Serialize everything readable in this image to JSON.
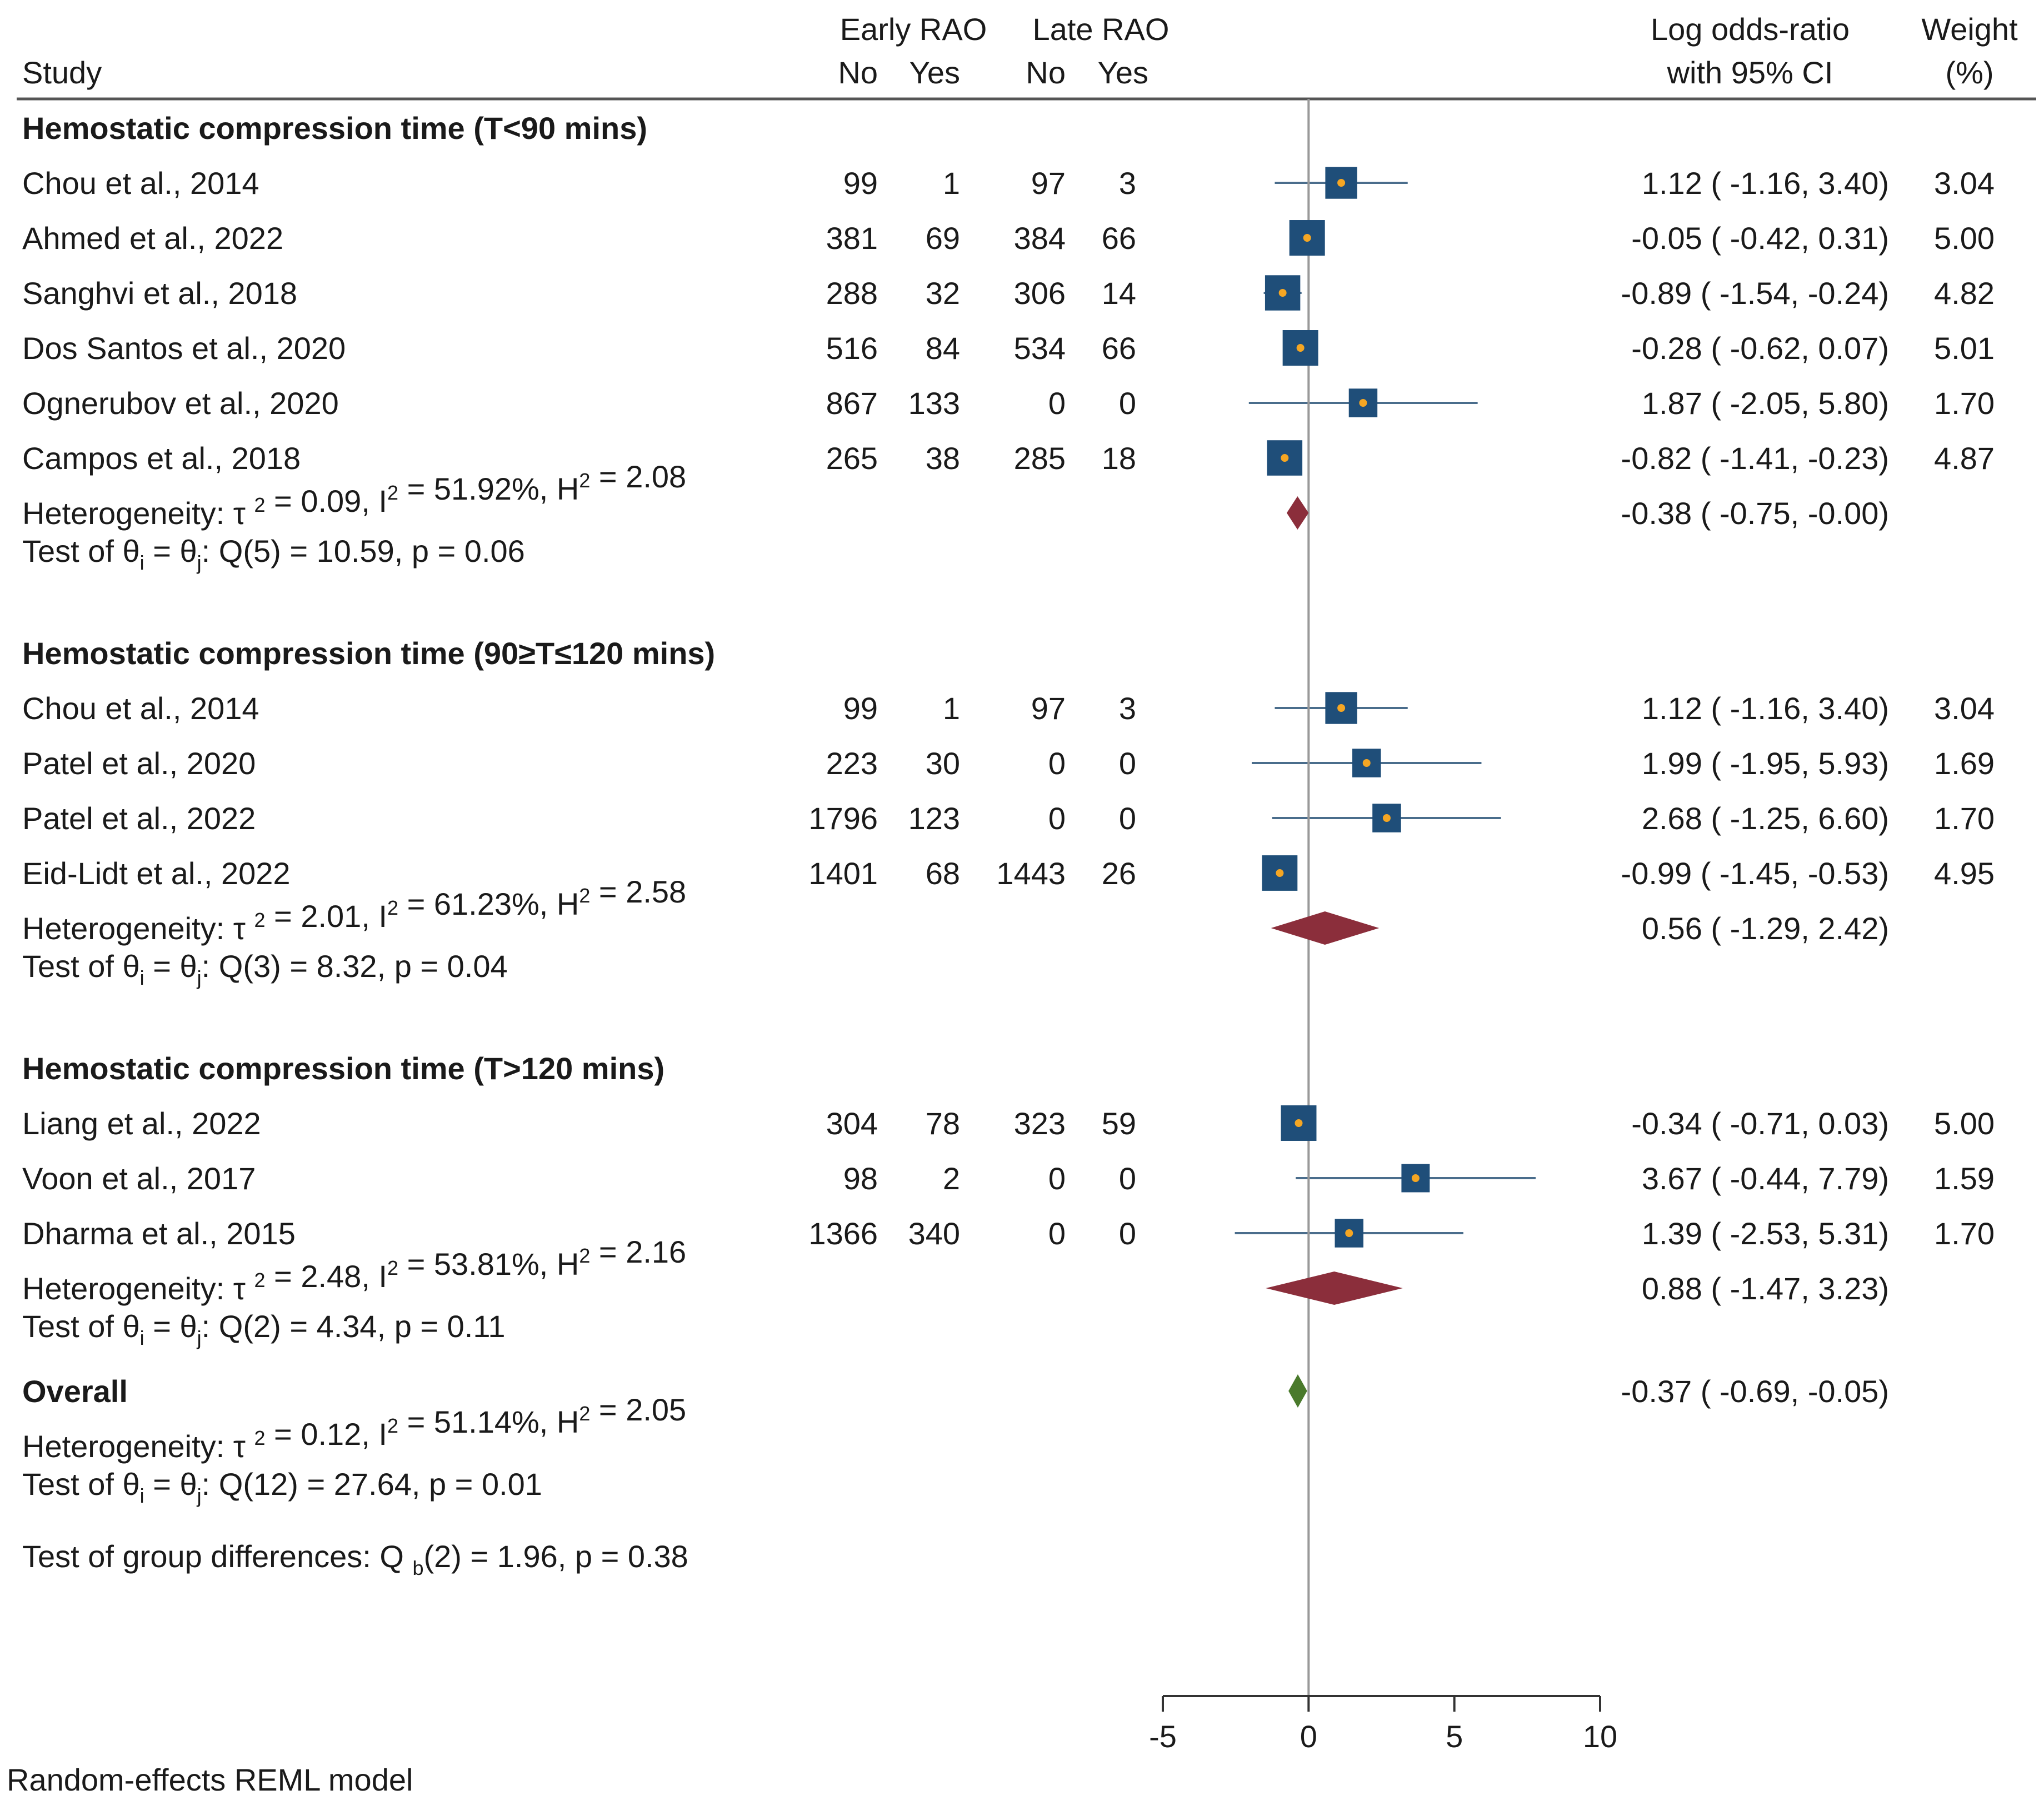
{
  "chart_data": {
    "type": "forest",
    "headers": {
      "study": "Study",
      "early_group": "Early RAO",
      "late_group": "Late RAO",
      "no": "No",
      "yes": "Yes",
      "effect_line1": "Log odds-ratio",
      "effect_line2": "with 95% CI",
      "weight_line1": "Weight",
      "weight_line2": "(%)"
    },
    "axis": {
      "min": -5,
      "max": 10,
      "ticks": [
        -5,
        0,
        5,
        10
      ],
      "tick_labels": [
        "-5",
        "0",
        "5",
        "10"
      ],
      "reference": 0
    },
    "colors": {
      "study_box": "#1f4e79",
      "study_dot": "#f5a623",
      "subgroup_diamond": "#8b2e3b",
      "overall_diamond": "#4a7a2c",
      "ci_line": "#4a6d8c",
      "ref_line": "#999999",
      "text": "#1a1a1a"
    },
    "groups": [
      {
        "title": "Hemostatic compression time (T<90 mins)",
        "studies": [
          {
            "name": "Chou et al., 2014",
            "early_no": "99",
            "early_yes": "1",
            "late_no": "97",
            "late_yes": "3",
            "est": 1.12,
            "lo": -1.16,
            "hi": 3.4,
            "ci_text": "1.12 (  -1.16,    3.40)",
            "weight": "3.04"
          },
          {
            "name": "Ahmed et al., 2022",
            "early_no": "381",
            "early_yes": "69",
            "late_no": "384",
            "late_yes": "66",
            "est": -0.05,
            "lo": -0.42,
            "hi": 0.31,
            "ci_text": "-0.05 (  -0.42,    0.31)",
            "weight": "5.00"
          },
          {
            "name": "Sanghvi et al., 2018",
            "early_no": "288",
            "early_yes": "32",
            "late_no": "306",
            "late_yes": "14",
            "est": -0.89,
            "lo": -1.54,
            "hi": -0.24,
            "ci_text": "-0.89 (  -1.54,  -0.24)",
            "weight": "4.82"
          },
          {
            "name": "Dos Santos et al., 2020",
            "early_no": "516",
            "early_yes": "84",
            "late_no": "534",
            "late_yes": "66",
            "est": -0.28,
            "lo": -0.62,
            "hi": 0.07,
            "ci_text": "-0.28 (  -0.62,    0.07)",
            "weight": "5.01"
          },
          {
            "name": "Ognerubov et al., 2020",
            "early_no": "867",
            "early_yes": "133",
            "late_no": "0",
            "late_yes": "0",
            "est": 1.87,
            "lo": -2.05,
            "hi": 5.8,
            "ci_text": "1.87 (  -2.05,    5.80)",
            "weight": "1.70"
          },
          {
            "name": "Campos et al., 2018",
            "early_no": "265",
            "early_yes": "38",
            "late_no": "285",
            "late_yes": "18",
            "est": -0.82,
            "lo": -1.41,
            "hi": -0.23,
            "ci_text": "-0.82 (  -1.41,  -0.23)",
            "weight": "4.87"
          }
        ],
        "summary": {
          "est": -0.38,
          "lo": -0.75,
          "hi": -0.0,
          "ci_text": "-0.38 (  -0.75,  -0.00)"
        },
        "het": {
          "tau2": "0.09",
          "i2": "51.92%",
          "h2": "2.08"
        },
        "test": {
          "df": "5",
          "q": "10.59",
          "p": "0.06"
        }
      },
      {
        "title": "Hemostatic compression time (90≥T≤120 mins)",
        "studies": [
          {
            "name": "Chou et al., 2014",
            "early_no": "99",
            "early_yes": "1",
            "late_no": "97",
            "late_yes": "3",
            "est": 1.12,
            "lo": -1.16,
            "hi": 3.4,
            "ci_text": "1.12 (  -1.16,    3.40)",
            "weight": "3.04"
          },
          {
            "name": "Patel et al., 2020",
            "early_no": "223",
            "early_yes": "30",
            "late_no": "0",
            "late_yes": "0",
            "est": 1.99,
            "lo": -1.95,
            "hi": 5.93,
            "ci_text": "1.99 (  -1.95,    5.93)",
            "weight": "1.69"
          },
          {
            "name": "Patel et al., 2022",
            "early_no": "1796",
            "early_yes": "123",
            "late_no": "0",
            "late_yes": "0",
            "est": 2.68,
            "lo": -1.25,
            "hi": 6.6,
            "ci_text": "2.68 (  -1.25,    6.60)",
            "weight": "1.70"
          },
          {
            "name": "Eid-Lidt et al., 2022",
            "early_no": "1401",
            "early_yes": "68",
            "late_no": "1443",
            "late_yes": "26",
            "est": -0.99,
            "lo": -1.45,
            "hi": -0.53,
            "ci_text": "-0.99 (  -1.45,  -0.53)",
            "weight": "4.95"
          }
        ],
        "summary": {
          "est": 0.56,
          "lo": -1.29,
          "hi": 2.42,
          "ci_text": "0.56 (  -1.29,    2.42)"
        },
        "het": {
          "tau2": "2.01",
          "i2": "61.23%",
          "h2": "2.58"
        },
        "test": {
          "df": "3",
          "q": "8.32",
          "p": "0.04"
        }
      },
      {
        "title": "Hemostatic compression time (T>120 mins)",
        "studies": [
          {
            "name": "Liang et al., 2022",
            "early_no": "304",
            "early_yes": "78",
            "late_no": "323",
            "late_yes": "59",
            "est": -0.34,
            "lo": -0.71,
            "hi": 0.03,
            "ci_text": "-0.34 (  -0.71,    0.03)",
            "weight": "5.00"
          },
          {
            "name": "Voon et al., 2017",
            "early_no": "98",
            "early_yes": "2",
            "late_no": "0",
            "late_yes": "0",
            "est": 3.67,
            "lo": -0.44,
            "hi": 7.79,
            "ci_text": "3.67 (  -0.44,    7.79)",
            "weight": "1.59"
          },
          {
            "name": "Dharma et al., 2015",
            "early_no": "1366",
            "early_yes": "340",
            "late_no": "0",
            "late_yes": "0",
            "est": 1.39,
            "lo": -2.53,
            "hi": 5.31,
            "ci_text": "1.39 (  -2.53,    5.31)",
            "weight": "1.70"
          }
        ],
        "summary": {
          "est": 0.88,
          "lo": -1.47,
          "hi": 3.23,
          "ci_text": "0.88 (  -1.47,    3.23)"
        },
        "het": {
          "tau2": "2.48",
          "i2": "53.81%",
          "h2": "2.16"
        },
        "test": {
          "df": "2",
          "q": "4.34",
          "p": "0.11"
        }
      }
    ],
    "overall": {
      "label": "Overall",
      "est": -0.37,
      "lo": -0.69,
      "hi": -0.05,
      "ci_text": "-0.37 (  -0.69,  -0.05)",
      "het": {
        "tau2": "0.12",
        "i2": "51.14%",
        "h2": "2.05"
      },
      "test": {
        "df": "12",
        "q": "27.64",
        "p": "0.01"
      }
    },
    "group_test": {
      "df": "2",
      "q": "1.96",
      "p": "0.38"
    },
    "footnote": "Random-effects REML model"
  }
}
